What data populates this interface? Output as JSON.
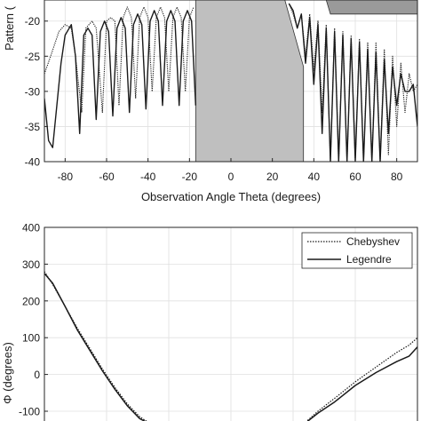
{
  "figure": {
    "caption": ""
  },
  "chart_data": [
    {
      "type": "line",
      "title": "",
      "xlabel": "Observation Angle Theta (degrees)",
      "ylabel": "Pattern (",
      "xlim": [
        -90,
        90
      ],
      "ylim": [
        -40,
        -17
      ],
      "xticks": [
        -80,
        -60,
        -40,
        -20,
        0,
        20,
        40,
        60,
        80
      ],
      "xtick_labels": [
        "-80",
        "-60",
        "-40",
        "-20",
        "0",
        "20",
        "40",
        "60",
        "80"
      ],
      "yticks": [
        -40,
        -35,
        -30,
        -25,
        -20
      ],
      "ytick_labels": [
        "-40",
        "-35",
        "-30",
        "-25",
        "-20"
      ],
      "grid": true,
      "legend": "none",
      "mask_regions": [
        {
          "shape": "polygon",
          "points": [
            [
              -17,
              -40
            ],
            [
              35,
              -40
            ],
            [
              35,
              -26.5
            ],
            [
              26,
              -17
            ],
            [
              -17,
              -17
            ]
          ],
          "color": "#bfbfbf"
        },
        {
          "shape": "polygon",
          "points": [
            [
              46,
              -17
            ],
            [
              90,
              -17
            ],
            [
              90,
              -19
            ],
            [
              48,
              -19
            ]
          ],
          "color": "#9a9a9a"
        }
      ],
      "series": [
        {
          "name": "Chebyshev",
          "style": "dotted",
          "x": [
            -90,
            -87,
            -83,
            -80,
            -77,
            -75,
            -72,
            -70,
            -67,
            -65,
            -62,
            -60,
            -58,
            -56,
            -54,
            -52,
            -50,
            -48,
            -46,
            -44,
            -42,
            -40,
            -38,
            -36,
            -34,
            -32,
            -30,
            -28,
            -26,
            -24,
            -22,
            -20,
            -18
          ],
          "y": [
            -27.5,
            -25,
            -21.5,
            -20.5,
            -21,
            -25,
            -33,
            -21,
            -20,
            -21,
            -33,
            -20,
            -19.5,
            -20,
            -32,
            -19.5,
            -18,
            -19.5,
            -31,
            -19.5,
            -18,
            -19.5,
            -30,
            -19.5,
            -18,
            -19.5,
            -30,
            -19.5,
            -18,
            -19.5,
            -30,
            -19.5,
            -18
          ]
        },
        {
          "name": "Legendre",
          "style": "solid",
          "x": [
            -90,
            -88,
            -86,
            -84,
            -82,
            -80,
            -77,
            -75,
            -73,
            -71,
            -69,
            -67,
            -65,
            -63,
            -61,
            -59,
            -57,
            -55,
            -53,
            -51,
            -49,
            -47,
            -45,
            -43,
            -41,
            -39,
            -37,
            -35,
            -33,
            -31,
            -29,
            -27,
            -25,
            -23,
            -21,
            -19,
            -17
          ],
          "y": [
            -31,
            -37,
            -38,
            -32,
            -26,
            -22,
            -20.5,
            -25,
            -36,
            -22,
            -21,
            -22,
            -34,
            -21.5,
            -20,
            -21.5,
            -33.5,
            -21,
            -19.5,
            -21,
            -33,
            -20.5,
            -19,
            -20.5,
            -32.5,
            -20,
            -18.5,
            -20,
            -32,
            -20,
            -18.5,
            -20,
            -32,
            -20,
            -18.5,
            -20,
            -32
          ]
        },
        {
          "name": "Chebyshev",
          "style": "dotted",
          "x": [
            28,
            30,
            32,
            34,
            36,
            38,
            40,
            42,
            44,
            46,
            48,
            50,
            52,
            54,
            56,
            58,
            60,
            62,
            64,
            66,
            68,
            70,
            72,
            74,
            76,
            78,
            80,
            82,
            84,
            86,
            88,
            90
          ],
          "y": [
            -17.5,
            -19,
            -21,
            -19,
            -25,
            -19,
            -27,
            -20,
            -33,
            -20.5,
            -40,
            -21,
            -40,
            -21.5,
            -40,
            -22,
            -40,
            -22.5,
            -40,
            -23,
            -40,
            -23,
            -40,
            -24,
            -39,
            -25,
            -35,
            -26,
            -33,
            -27.5,
            -30,
            -29
          ]
        },
        {
          "name": "Legendre",
          "style": "solid",
          "x": [
            28,
            30,
            32,
            34,
            36,
            38,
            40,
            42,
            44,
            46,
            48,
            50,
            52,
            54,
            56,
            58,
            60,
            62,
            64,
            66,
            68,
            70,
            72,
            74,
            76,
            78,
            80,
            82,
            84,
            86,
            88,
            90
          ],
          "y": [
            -17.5,
            -18.5,
            -21,
            -19,
            -26,
            -19.5,
            -29,
            -20.5,
            -36,
            -21,
            -40,
            -21.5,
            -40,
            -22,
            -40,
            -22.5,
            -40,
            -23,
            -40,
            -24,
            -40,
            -24.5,
            -40,
            -25.5,
            -36,
            -26.5,
            -32,
            -27.5,
            -30,
            -30,
            -29,
            -35
          ]
        }
      ]
    },
    {
      "type": "line",
      "title": "",
      "xlabel": "",
      "ylabel": "Φ (degrees)",
      "xlim": [
        -90,
        90
      ],
      "ylim": [
        -120,
        400
      ],
      "yticks": [
        -100,
        0,
        100,
        200,
        300,
        400
      ],
      "ytick_labels": [
        "-100",
        "0",
        "100",
        "200",
        "300",
        "400"
      ],
      "xgrid": [
        -60,
        -30,
        0,
        30,
        60
      ],
      "grid": true,
      "legend": "top-right",
      "series": [
        {
          "name": "Chebyshev",
          "style": "dotted",
          "x": [
            -90,
            -86,
            -80,
            -74,
            -68,
            -62,
            -56,
            -50,
            -44,
            -40
          ],
          "y": [
            280,
            245,
            185,
            125,
            70,
            15,
            -35,
            -80,
            -115,
            -130
          ]
        },
        {
          "name": "Legendre",
          "style": "solid",
          "x": [
            -90,
            -86,
            -80,
            -74,
            -68,
            -62,
            -56,
            -50,
            -44,
            -40
          ],
          "y": [
            275,
            248,
            185,
            120,
            65,
            10,
            -40,
            -85,
            -120,
            -132
          ]
        },
        {
          "name": "Chebyshev",
          "style": "dotted",
          "x": [
            36,
            42,
            50,
            60,
            70,
            80,
            86,
            90
          ],
          "y": [
            -130,
            -100,
            -65,
            -20,
            20,
            60,
            80,
            100
          ]
        },
        {
          "name": "Legendre",
          "style": "solid",
          "x": [
            36,
            42,
            50,
            60,
            70,
            80,
            86,
            90
          ],
          "y": [
            -132,
            -105,
            -75,
            -30,
            5,
            35,
            50,
            75
          ]
        }
      ]
    }
  ]
}
